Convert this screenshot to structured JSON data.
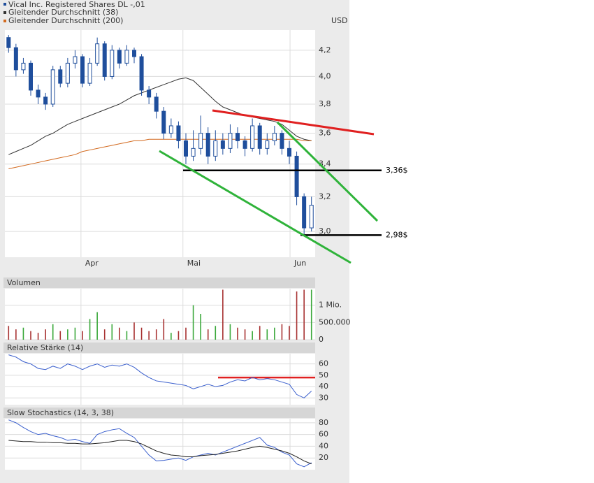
{
  "chart_data": [
    {
      "type": "candlestick",
      "name": "Vical Inc. Registered Shares DL -,01",
      "color": "#1f4e9c",
      "y_label": "USD",
      "open": [
        4.3,
        4.22,
        4.05,
        4.1,
        3.9,
        3.85,
        3.8,
        4.05,
        3.95,
        4.1,
        4.15,
        3.95,
        4.1,
        4.25,
        4.0,
        4.2,
        4.1,
        4.2,
        4.15,
        3.9,
        3.85,
        3.75,
        3.6,
        3.65,
        3.55,
        3.45,
        3.5,
        3.6,
        3.45,
        3.55,
        3.5,
        3.6,
        3.55,
        3.5,
        3.65,
        3.5,
        3.55,
        3.6,
        3.5,
        3.45,
        3.2,
        3.02
      ],
      "high": [
        4.32,
        4.25,
        4.14,
        4.12,
        3.94,
        3.88,
        4.08,
        4.08,
        4.14,
        4.2,
        4.17,
        4.14,
        4.3,
        4.27,
        4.24,
        4.22,
        4.24,
        4.22,
        4.17,
        3.93,
        3.88,
        3.78,
        3.7,
        3.68,
        3.6,
        3.62,
        3.72,
        3.64,
        3.62,
        3.6,
        3.66,
        3.64,
        3.58,
        3.7,
        3.67,
        3.6,
        3.65,
        3.62,
        3.55,
        3.48,
        3.22,
        3.2
      ],
      "low": [
        4.18,
        4.0,
        4.02,
        3.86,
        3.8,
        3.76,
        3.78,
        3.92,
        3.92,
        4.06,
        3.92,
        3.93,
        4.08,
        3.97,
        3.98,
        4.06,
        4.08,
        4.1,
        3.86,
        3.8,
        3.7,
        3.56,
        3.57,
        3.5,
        3.4,
        3.42,
        3.46,
        3.4,
        3.42,
        3.46,
        3.47,
        3.5,
        3.45,
        3.48,
        3.46,
        3.46,
        3.52,
        3.46,
        3.4,
        3.15,
        2.98,
        3.0
      ],
      "close": [
        4.22,
        4.05,
        4.1,
        3.9,
        3.85,
        3.8,
        4.05,
        3.95,
        4.1,
        4.15,
        3.95,
        4.1,
        4.25,
        4.0,
        4.2,
        4.1,
        4.2,
        4.15,
        3.9,
        3.85,
        3.75,
        3.6,
        3.65,
        3.55,
        3.45,
        3.5,
        3.6,
        3.45,
        3.55,
        3.5,
        3.6,
        3.55,
        3.5,
        3.65,
        3.5,
        3.55,
        3.6,
        3.5,
        3.45,
        3.2,
        3.02,
        3.15
      ],
      "series": [
        {
          "name": "Gleitender Durchschnitt (38)",
          "color": "#333333",
          "values": [
            3.46,
            3.48,
            3.5,
            3.52,
            3.55,
            3.58,
            3.6,
            3.63,
            3.66,
            3.68,
            3.7,
            3.72,
            3.74,
            3.76,
            3.78,
            3.8,
            3.83,
            3.86,
            3.88,
            3.9,
            3.92,
            3.94,
            3.96,
            3.98,
            3.99,
            3.97,
            3.92,
            3.87,
            3.82,
            3.78,
            3.76,
            3.74,
            3.72,
            3.71,
            3.7,
            3.69,
            3.68,
            3.66,
            3.62,
            3.58,
            3.56,
            3.55
          ]
        },
        {
          "name": "Gleitender Durchschnitt (200)",
          "color": "#d2691e",
          "values": [
            3.37,
            3.38,
            3.39,
            3.4,
            3.41,
            3.42,
            3.43,
            3.44,
            3.45,
            3.46,
            3.48,
            3.49,
            3.5,
            3.51,
            3.52,
            3.53,
            3.54,
            3.55,
            3.55,
            3.56,
            3.56,
            3.56,
            3.56,
            3.56,
            3.56,
            3.56,
            3.56,
            3.56,
            3.56,
            3.56,
            3.56,
            3.56,
            3.56,
            3.56,
            3.56,
            3.56,
            3.56,
            3.56,
            3.56,
            3.56,
            3.55,
            3.55
          ]
        }
      ],
      "log": true,
      "grid": true,
      "ylim": [
        2.86,
        4.36
      ],
      "yticks": [
        {
          "value": 3.0,
          "label": "3,0"
        },
        {
          "value": 3.2,
          "label": "3,2"
        },
        {
          "value": 3.4,
          "label": "3,4"
        },
        {
          "value": 3.6,
          "label": "3,6"
        },
        {
          "value": 3.8,
          "label": "3,8"
        },
        {
          "value": 4.0,
          "label": "4,0"
        },
        {
          "value": 4.2,
          "label": "4,2"
        }
      ],
      "xlim": [
        -0.5,
        41.5
      ],
      "xticks": [
        {
          "value": 9.8,
          "label": "Apr"
        },
        {
          "value": 23.6,
          "label": "Mai"
        },
        {
          "value": 38.1,
          "label": "Jun"
        }
      ],
      "annotations": [
        {
          "value": 3.36,
          "label": "3,36$"
        },
        {
          "value": 2.98,
          "label": "2,98$"
        }
      ]
    },
    {
      "type": "bar",
      "title": "Volumen",
      "up_color": "#3aa83a",
      "down_color": "#a83232",
      "values": [
        400000,
        300000,
        350000,
        250000,
        200000,
        300000,
        450000,
        250000,
        300000,
        350000,
        250000,
        600000,
        800000,
        300000,
        450000,
        350000,
        250000,
        500000,
        350000,
        250000,
        300000,
        600000,
        200000,
        250000,
        350000,
        1000000,
        750000,
        300000,
        400000,
        1450000,
        450000,
        350000,
        300000,
        250000,
        400000,
        300000,
        350000,
        450000,
        400000,
        1400000,
        1450000,
        1450000
      ],
      "ylim": [
        0,
        1480000
      ],
      "yticks": [
        0,
        {
          "value": 500000,
          "label": "500.000"
        },
        {
          "value": 1000000,
          "label": "1 Mio."
        }
      ]
    },
    {
      "type": "line",
      "title": "Relative Stärke (14)",
      "series": [
        {
          "color": "#3a5fcd",
          "values": [
            68,
            66,
            62,
            60,
            56,
            55,
            58,
            56,
            60,
            58,
            55,
            58,
            60,
            57,
            59,
            58,
            60,
            57,
            52,
            48,
            45,
            44,
            43,
            42,
            41,
            38,
            40,
            42,
            40,
            41,
            44,
            46,
            45,
            48,
            46,
            47,
            46,
            44,
            42,
            33,
            30,
            36
          ]
        }
      ],
      "ylim": [
        24,
        69
      ],
      "yticks": [
        30,
        40,
        50,
        60
      ],
      "annotations": [
        {
          "value": 48,
          "color": "#e02020"
        }
      ]
    },
    {
      "type": "line",
      "title": "Slow Stochastics (14, 3, 38)",
      "series": [
        {
          "color": "#3a5fcd",
          "values": [
            85,
            80,
            72,
            65,
            60,
            62,
            58,
            55,
            50,
            52,
            48,
            45,
            60,
            65,
            68,
            70,
            62,
            55,
            40,
            25,
            15,
            16,
            18,
            20,
            16,
            22,
            25,
            28,
            25,
            30,
            35,
            40,
            45,
            50,
            55,
            42,
            38,
            30,
            25,
            10,
            5,
            12
          ]
        },
        {
          "color": "#222222",
          "values": [
            50,
            49,
            48,
            48,
            47,
            47,
            46,
            46,
            45,
            45,
            44,
            44,
            45,
            46,
            48,
            50,
            50,
            48,
            44,
            38,
            32,
            28,
            25,
            24,
            22,
            22,
            24,
            25,
            26,
            28,
            30,
            32,
            35,
            38,
            40,
            38,
            35,
            32,
            28,
            22,
            15,
            10
          ]
        }
      ],
      "ylim": [
        0,
        87
      ],
      "yticks": [
        20,
        40,
        60,
        80
      ]
    }
  ]
}
